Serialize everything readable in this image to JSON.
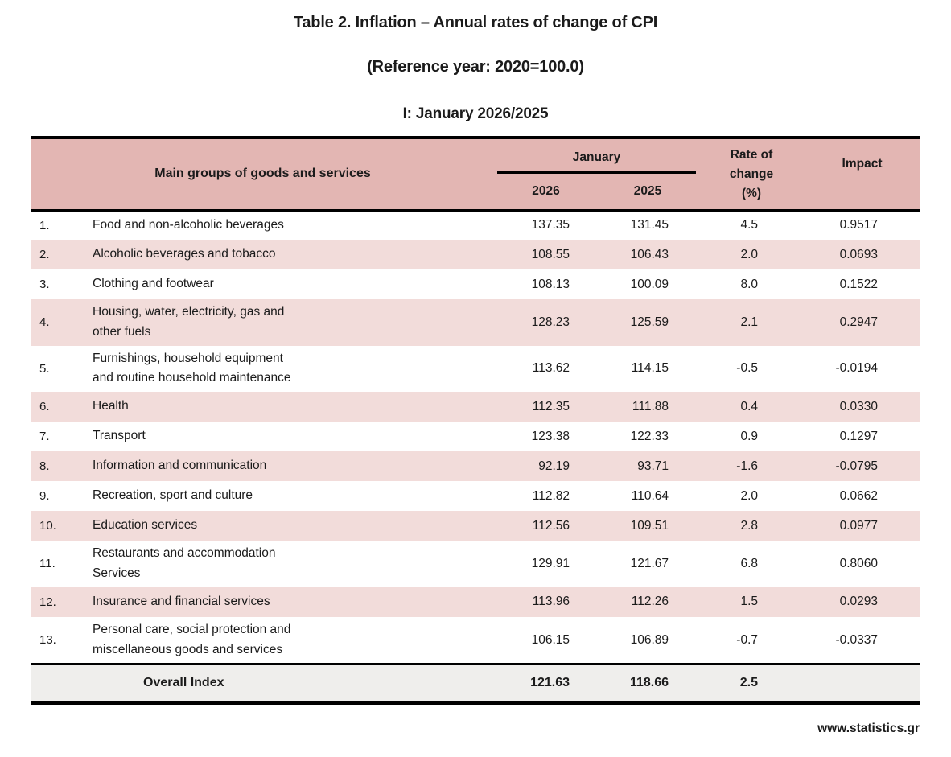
{
  "page": {
    "title": "Table 2. Inflation – Annual rates of change of CPI",
    "subtitle": "(Reference year: 2020=100.0)",
    "period_title": "I: January 2026/2025",
    "footer": "www.statistics.gr"
  },
  "colors": {
    "header_bg": "#e3b6b3",
    "stripe_bg": "#f2dcda",
    "overall_bg": "#efeeec",
    "line_color": "#000000",
    "text_color": "#1b1b1b"
  },
  "table": {
    "headers": {
      "main": "Main groups of goods and services",
      "month_group": "January",
      "year_left": "2026",
      "year_right": "2025",
      "rate": "Rate of\nchange\n(%)",
      "impact": "Impact"
    },
    "rows": [
      {
        "no": "1.",
        "name": "Food and non-alcoholic beverages",
        "y2026": "137.35",
        "y2025": "131.45",
        "rate": "4.5",
        "impact": "0.9517"
      },
      {
        "no": "2.",
        "name": "Alcoholic beverages and tobacco",
        "y2026": "108.55",
        "y2025": "106.43",
        "rate": "2.0",
        "impact": "0.0693"
      },
      {
        "no": "3.",
        "name": "Clothing and footwear",
        "y2026": "108.13",
        "y2025": "100.09",
        "rate": "8.0",
        "impact": "0.1522"
      },
      {
        "no": "4.",
        "name": "Housing, water, electricity, gas and\nother fuels",
        "y2026": "128.23",
        "y2025": "125.59",
        "rate": "2.1",
        "impact": "0.2947"
      },
      {
        "no": "5.",
        "name": "Furnishings, household equipment\nand routine household maintenance",
        "y2026": "113.62",
        "y2025": "114.15",
        "rate": "-0.5",
        "impact": "-0.0194"
      },
      {
        "no": "6.",
        "name": "Health",
        "y2026": "112.35",
        "y2025": "111.88",
        "rate": "0.4",
        "impact": "0.0330"
      },
      {
        "no": "7.",
        "name": "Transport",
        "y2026": "123.38",
        "y2025": "122.33",
        "rate": "0.9",
        "impact": "0.1297"
      },
      {
        "no": "8.",
        "name": "Information and communication",
        "y2026": "92.19",
        "y2025": "93.71",
        "rate": "-1.6",
        "impact": "-0.0795"
      },
      {
        "no": "9.",
        "name": "Recreation, sport and culture",
        "y2026": "112.82",
        "y2025": "110.64",
        "rate": "2.0",
        "impact": "0.0662"
      },
      {
        "no": "10.",
        "name": "Education services",
        "y2026": "112.56",
        "y2025": "109.51",
        "rate": "2.8",
        "impact": "0.0977"
      },
      {
        "no": "11.",
        "name": "Restaurants and accommodation\nServices",
        "y2026": "129.91",
        "y2025": "121.67",
        "rate": "6.8",
        "impact": "0.8060"
      },
      {
        "no": "12.",
        "name": "Insurance and financial services",
        "y2026": "113.96",
        "y2025": "112.26",
        "rate": "1.5",
        "impact": "0.0293"
      },
      {
        "no": "13.",
        "name": "Personal care, social protection and\nmiscellaneous goods and services",
        "y2026": "106.15",
        "y2025": "106.89",
        "rate": "-0.7",
        "impact": "-0.0337"
      }
    ],
    "overall": {
      "label": "Overall Index",
      "y2026": "121.63",
      "y2025": "118.66",
      "rate": "2.5",
      "impact": ""
    }
  }
}
